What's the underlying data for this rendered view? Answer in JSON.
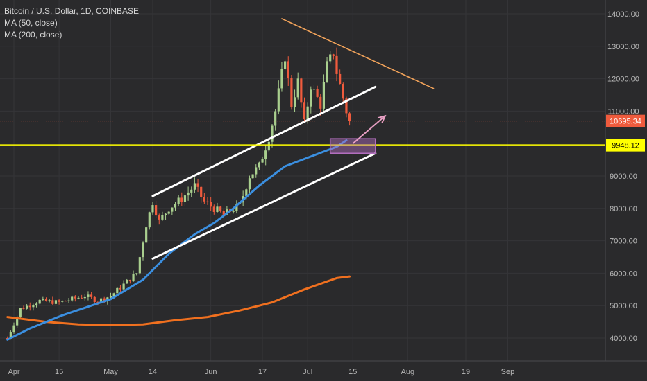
{
  "legend": {
    "title": "Bitcoin / U.S. Dollar, 1D, COINBASE",
    "ma50": "MA (50, close)",
    "ma200": "MA (200, close)"
  },
  "colors": {
    "background": "#2a2a2c",
    "candle_up": "#a9cf8e",
    "candle_down": "#ef5b3d",
    "ma50": "#3b8fe0",
    "ma200": "#f0701f",
    "support": "#ffff00",
    "price_line": "#ef5b3d",
    "channel": "#ffffff",
    "trendline": "#f2a35a",
    "arrow": "#e8a0c4",
    "zone": "#b46fc0"
  },
  "chart_data": {
    "type": "candlestick",
    "x_axis_labels": [
      "Apr",
      "15",
      "May",
      "14",
      "Jun",
      "17",
      "Jul",
      "15",
      "Aug",
      "19",
      "Sep"
    ],
    "x_axis_label_days": [
      0,
      14,
      30,
      43,
      61,
      77,
      91,
      105,
      122,
      140,
      153
    ],
    "y_axis_labels": [
      "14000.00",
      "13000.00",
      "12000.00",
      "11000.00",
      "9000.00",
      "8000.00",
      "7000.00",
      "6000.00",
      "5000.00",
      "4000.00"
    ],
    "y_axis_values": [
      14000,
      13000,
      12000,
      11000,
      9000,
      8000,
      7000,
      6000,
      5000,
      4000
    ],
    "ylim": [
      3500,
      14300
    ],
    "grid": true,
    "current_price": {
      "label": "10695.34",
      "value": 10695.34
    },
    "support_level": {
      "label": "9948.12",
      "value": 9948.12
    },
    "close_anchors": [
      [
        -2,
        4000
      ],
      [
        2,
        4900
      ],
      [
        8,
        5150
      ],
      [
        14,
        5100
      ],
      [
        18,
        5200
      ],
      [
        22,
        5300
      ],
      [
        26,
        5150
      ],
      [
        30,
        5300
      ],
      [
        34,
        5650
      ],
      [
        38,
        6000
      ],
      [
        41,
        7500
      ],
      [
        43,
        8200
      ],
      [
        45,
        7600
      ],
      [
        48,
        8000
      ],
      [
        52,
        8300
      ],
      [
        56,
        8700
      ],
      [
        59,
        8200
      ],
      [
        62,
        8000
      ],
      [
        65,
        7800
      ],
      [
        70,
        8100
      ],
      [
        73,
        9000
      ],
      [
        76,
        9300
      ],
      [
        79,
        10200
      ],
      [
        81,
        11000
      ],
      [
        84,
        12700
      ],
      [
        86,
        11200
      ],
      [
        88,
        11900
      ],
      [
        90,
        10600
      ],
      [
        92,
        11800
      ],
      [
        95,
        11200
      ],
      [
        97,
        12400
      ],
      [
        99,
        12800
      ],
      [
        100,
        12200
      ],
      [
        102,
        11400
      ],
      [
        103,
        11000
      ],
      [
        104,
        10695
      ]
    ],
    "ma50_points": [
      [
        -2,
        3950
      ],
      [
        5,
        4300
      ],
      [
        15,
        4700
      ],
      [
        30,
        5200
      ],
      [
        40,
        5800
      ],
      [
        48,
        6600
      ],
      [
        56,
        7200
      ],
      [
        62,
        7550
      ],
      [
        68,
        8000
      ],
      [
        76,
        8700
      ],
      [
        84,
        9300
      ],
      [
        92,
        9600
      ],
      [
        100,
        9900
      ],
      [
        103,
        10100
      ]
    ],
    "ma200_points": [
      [
        -2,
        4650
      ],
      [
        10,
        4500
      ],
      [
        20,
        4420
      ],
      [
        30,
        4400
      ],
      [
        40,
        4420
      ],
      [
        50,
        4550
      ],
      [
        60,
        4650
      ],
      [
        70,
        4850
      ],
      [
        80,
        5100
      ],
      [
        90,
        5500
      ],
      [
        100,
        5850
      ],
      [
        104,
        5900
      ]
    ],
    "annotations": {
      "channel_upper": [
        [
          43,
          8380
        ],
        [
          112,
          11750
        ]
      ],
      "channel_lower": [
        [
          43,
          6450
        ],
        [
          112,
          9700
        ]
      ],
      "descending_trendline": [
        [
          83,
          13850
        ],
        [
          130,
          11700
        ]
      ],
      "arrow": [
        [
          105,
          10000
        ],
        [
          115,
          10850
        ]
      ],
      "zone": {
        "x": [
          98,
          112
        ],
        "y": [
          9700,
          10150
        ]
      }
    }
  }
}
